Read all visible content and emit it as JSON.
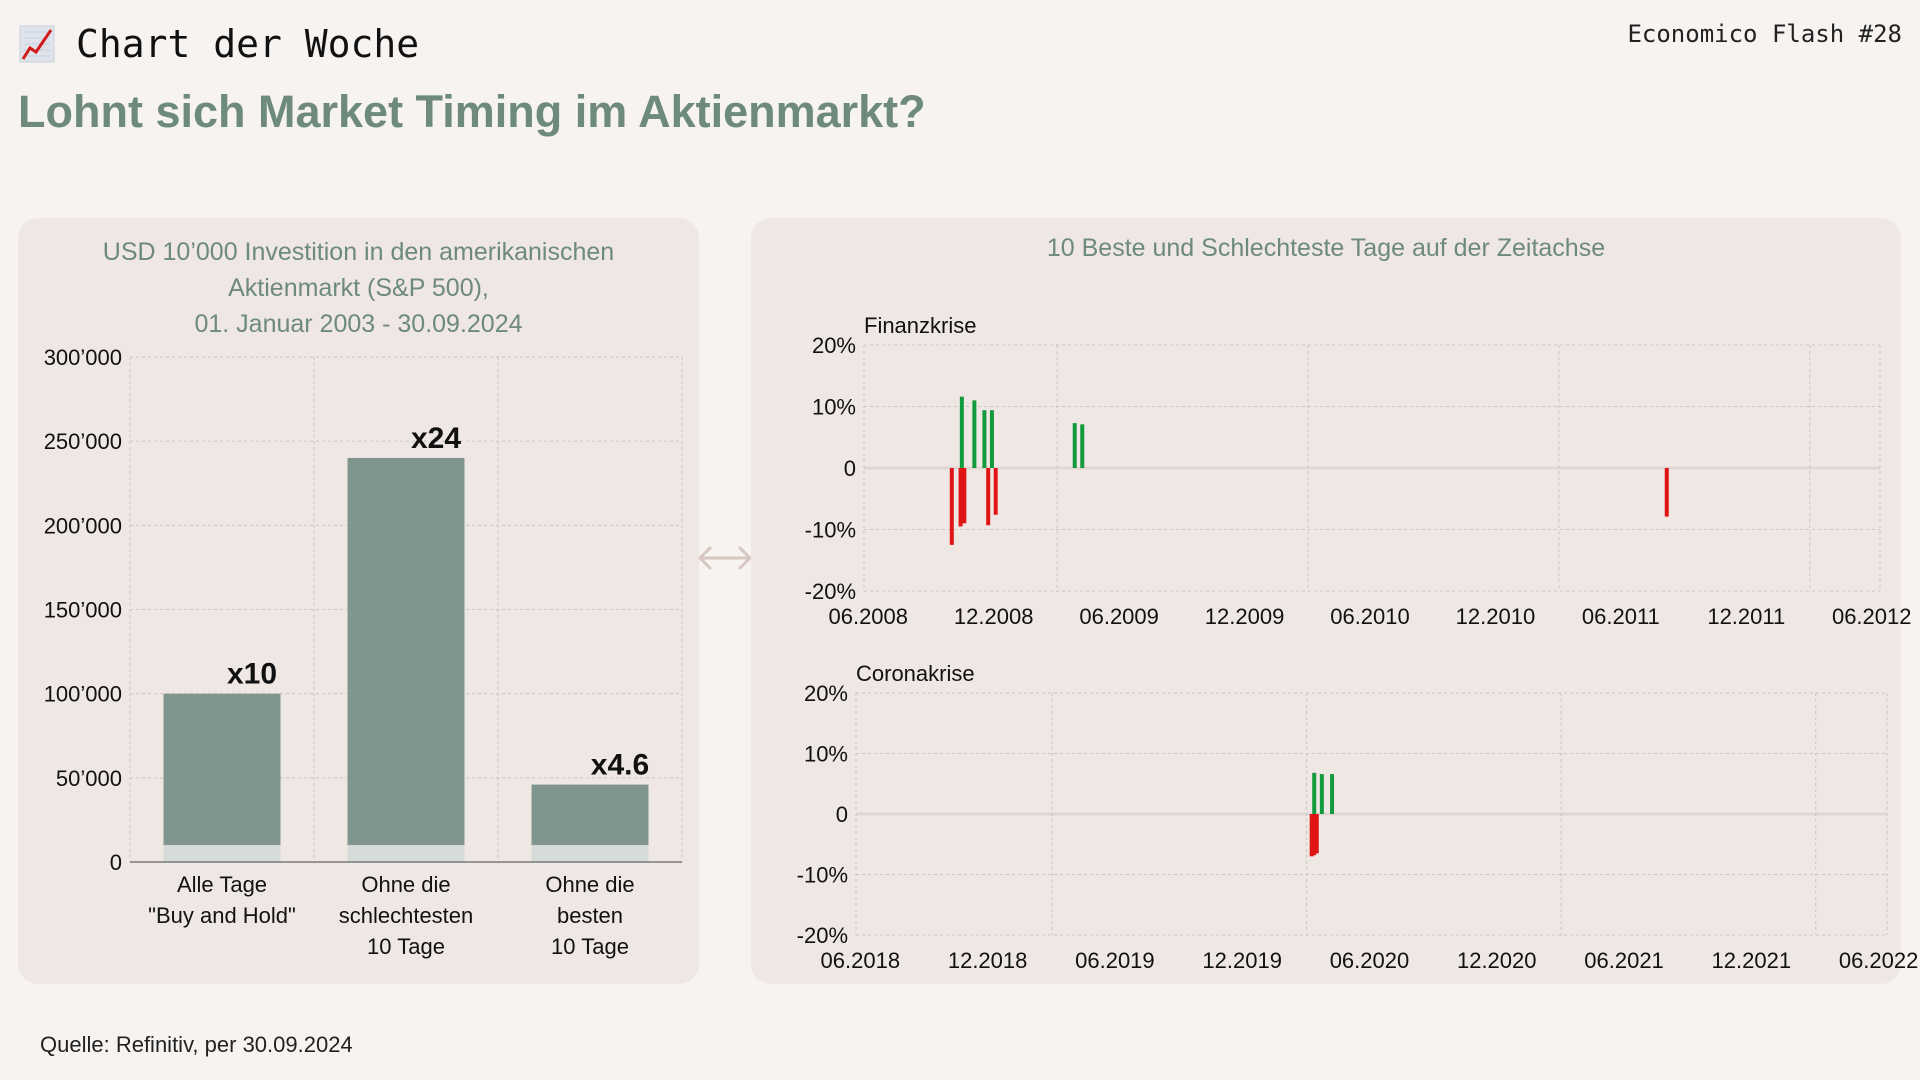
{
  "header": {
    "kicker_icon": "chart-increasing-icon",
    "kicker": "Chart der Woche",
    "issue": "Economico Flash #28",
    "title": "Lohnt sich Market Timing im Aktienmarkt?"
  },
  "connector_icon": "double-arrow-icon",
  "source": "Quelle: Refinitiv, per 30.09.2024",
  "colors": {
    "accent": "#6d8a7c",
    "bar": "#80958d",
    "bar_base": "#d6dcd9",
    "positive": "#139a3d",
    "negative": "#e01414",
    "card": "#efe7e4",
    "background": "#f6f3f1"
  },
  "chart_data": [
    {
      "type": "bar",
      "title_lines": [
        "USD 10’000 Investition in den amerikanischen",
        "Aktienmarkt (S&P 500),",
        "01. Januar 2003 - 30.09.2024"
      ],
      "categories": [
        [
          "Alle Tage",
          "\"Buy and Hold\""
        ],
        [
          "Ohne die",
          "schlechtesten",
          "10 Tage"
        ],
        [
          "Ohne die",
          "besten",
          "10 Tage"
        ]
      ],
      "values": [
        100000,
        240000,
        46000
      ],
      "base_value": 10000,
      "data_labels": [
        "x10",
        "x24",
        "x4.6"
      ],
      "ylim": [
        0,
        300000
      ],
      "yticks": [
        0,
        50000,
        100000,
        150000,
        200000,
        250000,
        300000
      ],
      "ytick_labels": [
        "0",
        "50’000",
        "100’000",
        "150’000",
        "200’000",
        "250’000",
        "300’000"
      ],
      "grid": true,
      "xlabel": "",
      "ylabel": ""
    },
    {
      "type": "bar",
      "panel_title": "10 Beste und Schlechteste Tage auf der Zeitachse",
      "title": "Finanzkrise",
      "xlim": [
        2008.4,
        2012.45
      ],
      "xticks": [
        2008.417,
        2008.917,
        2009.417,
        2009.917,
        2010.417,
        2010.917,
        2011.417,
        2011.917,
        2012.417
      ],
      "xtick_labels": [
        "06.2008",
        "12.2008",
        "06.2009",
        "12.2009",
        "06.2010",
        "12.2010",
        "06.2011",
        "12.2011",
        "06.2012"
      ],
      "ylim": [
        -20,
        20
      ],
      "yticks": [
        -20,
        -10,
        0,
        10,
        20
      ],
      "ytick_labels": [
        "-20%",
        "-10%",
        "0",
        "10%",
        "20%"
      ],
      "grid": true,
      "series": [
        {
          "name": "Beste Tage",
          "points": [
            [
              2008.79,
              11.6
            ],
            [
              2008.84,
              11.0
            ],
            [
              2008.88,
              9.4
            ],
            [
              2008.91,
              9.4
            ],
            [
              2009.24,
              7.3
            ],
            [
              2009.27,
              7.1
            ]
          ]
        },
        {
          "name": "Schlechteste Tage",
          "points": [
            [
              2008.75,
              -12.5
            ],
            [
              2008.785,
              -9.5
            ],
            [
              2008.8,
              -9.0
            ],
            [
              2008.895,
              -9.3
            ],
            [
              2008.925,
              -7.6
            ],
            [
              2011.6,
              -7.9
            ]
          ]
        }
      ]
    },
    {
      "type": "bar",
      "title": "Coronakrise",
      "xlim": [
        2018.4,
        2022.45
      ],
      "xticks": [
        2018.417,
        2018.917,
        2019.417,
        2019.917,
        2020.417,
        2020.917,
        2021.417,
        2021.917,
        2022.417
      ],
      "xtick_labels": [
        "06.2018",
        "12.2018",
        "06.2019",
        "12.2019",
        "06.2020",
        "12.2020",
        "06.2021",
        "12.2021",
        "06.2022"
      ],
      "ylim": [
        -20,
        20
      ],
      "yticks": [
        -20,
        -10,
        0,
        10,
        20
      ],
      "ytick_labels": [
        "-20%",
        "-10%",
        "0",
        "10%",
        "20%"
      ],
      "grid": true,
      "series": [
        {
          "name": "Beste Tage",
          "points": [
            [
              2020.2,
              6.8
            ],
            [
              2020.23,
              6.6
            ],
            [
              2020.27,
              6.6
            ]
          ]
        },
        {
          "name": "Schlechteste Tage",
          "points": [
            [
              2020.19,
              -7.0
            ],
            [
              2020.2,
              -6.8
            ],
            [
              2020.21,
              -6.5
            ]
          ]
        }
      ]
    }
  ]
}
